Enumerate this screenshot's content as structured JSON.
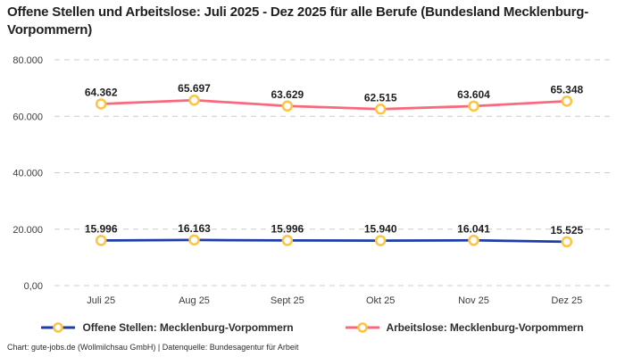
{
  "title": "Offene Stellen und Arbeitslose: Juli 2025 - Dez 2025 für alle Berufe (Bundesland Mecklenburg-Vorpommern)",
  "footer": "Chart: gute-jobs.de (Wollmilchsau GmbH) | Datenquelle: Bundesagentur für Arbeit",
  "colors": {
    "background": "#ffffff",
    "grid": "#cccccc",
    "title_text": "#212121",
    "axis_text": "#3c3c3c",
    "data_label_text": "#1f1f1f"
  },
  "chart_data": {
    "type": "line",
    "categories": [
      "Juli 25",
      "Aug 25",
      "Sept 25",
      "Okt 25",
      "Nov 25",
      "Dez 25"
    ],
    "series": [
      {
        "name": "Offene Stellen: Mecklenburg-Vorpommern",
        "color": "#1E3DA8",
        "values": [
          15996,
          16163,
          15996,
          15940,
          16041,
          15525
        ],
        "labels": [
          "15.996",
          "16.163",
          "15.996",
          "15.940",
          "16.041",
          "15.525"
        ]
      },
      {
        "name": "Arbeitslose: Mecklenburg-Vorpommern",
        "color": "#F8697E",
        "values": [
          64362,
          65697,
          63629,
          62515,
          63604,
          65348
        ],
        "labels": [
          "64.362",
          "65.697",
          "63.629",
          "62.515",
          "63.604",
          "65.348"
        ]
      }
    ],
    "y_ticks": [
      {
        "value": 0,
        "label": "0,00"
      },
      {
        "value": 20000,
        "label": "20.000"
      },
      {
        "value": 40000,
        "label": "40.000"
      },
      {
        "value": 60000,
        "label": "60.000"
      },
      {
        "value": 80000,
        "label": "80.000"
      }
    ],
    "ylim": [
      0,
      80000
    ],
    "grid": "horizontal-dashed",
    "legend_position": "bottom",
    "marker": {
      "fill": "#ffffff",
      "stroke": "#FDC43F",
      "radius": 5,
      "stroke_width": 2.5
    }
  }
}
